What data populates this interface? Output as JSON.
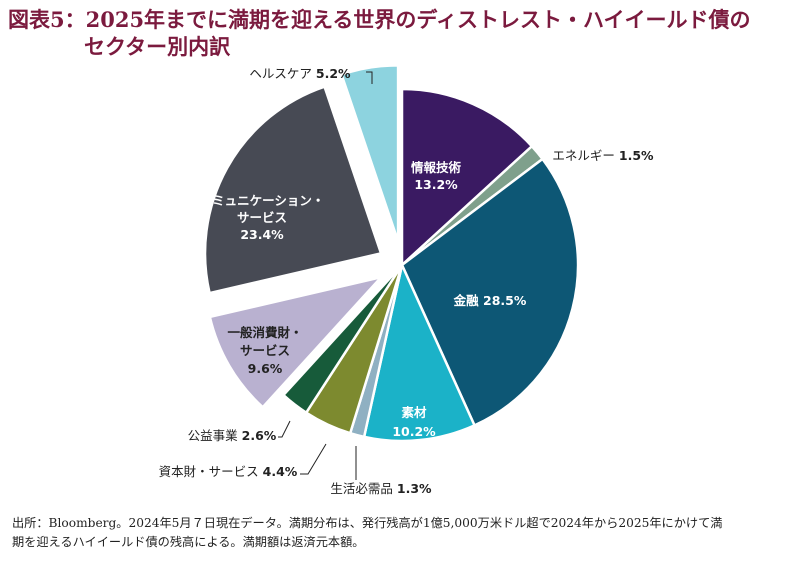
{
  "title_line1": "図表5：2025年までに満期を迎える世界のディストレスト・ハイイールド債の",
  "title_line2": "セクター別内訳",
  "footnote_line1": "出所：Bloomberg。2024年5月７日現在データ。満期分布は、発行残高が1億5,000万米ドル超で2024年から2025年にかけて満",
  "footnote_line2": "期を迎えるハイイールド債の残高による。満期額は返済元本額。",
  "chart_data": {
    "type": "pie",
    "title": "図表5：2025年までに満期を迎える世界のディストレスト・ハイイールド債のセクター別内訳",
    "unit": "%",
    "slices": [
      {
        "label": [
          "情報技術"
        ],
        "value": 13.2,
        "value_text": "13.2%",
        "color": "#3a1a62",
        "placement": "inside",
        "explode": false
      },
      {
        "label": [
          "エネルギー"
        ],
        "value": 1.5,
        "value_text": "1.5%",
        "color": "#7fa08c",
        "placement": "outside-right",
        "explode": false
      },
      {
        "label": [
          "金融"
        ],
        "value": 28.5,
        "value_text": "28.5%",
        "color": "#0d5775",
        "placement": "inside",
        "explode": false
      },
      {
        "label": [
          "素材"
        ],
        "value": 10.2,
        "value_text": "10.2%",
        "color": "#1bb2c8",
        "placement": "inside",
        "explode": false
      },
      {
        "label": [
          "生活必需品"
        ],
        "value": 1.3,
        "value_text": "1.3%",
        "color": "#8fb0c2",
        "placement": "outside-bottom",
        "explode": false
      },
      {
        "label": [
          "資本財・サービス"
        ],
        "value": 4.4,
        "value_text": "4.4%",
        "color": "#7d8a2f",
        "placement": "outside-left",
        "explode": false
      },
      {
        "label": [
          "公益事業"
        ],
        "value": 2.6,
        "value_text": "2.6%",
        "color": "#175b3a",
        "placement": "outside-left",
        "explode": false
      },
      {
        "label": [
          "一般消費財・",
          "サービス"
        ],
        "value": 9.6,
        "value_text": "9.6%",
        "color": "#b9b1d0",
        "placement": "inside",
        "explode": true
      },
      {
        "label": [
          "コミュニケーション・",
          "サービス"
        ],
        "value": 23.4,
        "value_text": "23.4%",
        "color": "#474a54",
        "placement": "inside",
        "explode": true
      },
      {
        "label": [
          "ヘルスケア"
        ],
        "value": 5.2,
        "value_text": "5.2%",
        "color": "#8dd3df",
        "placement": "outside-top",
        "explode": true
      }
    ]
  }
}
